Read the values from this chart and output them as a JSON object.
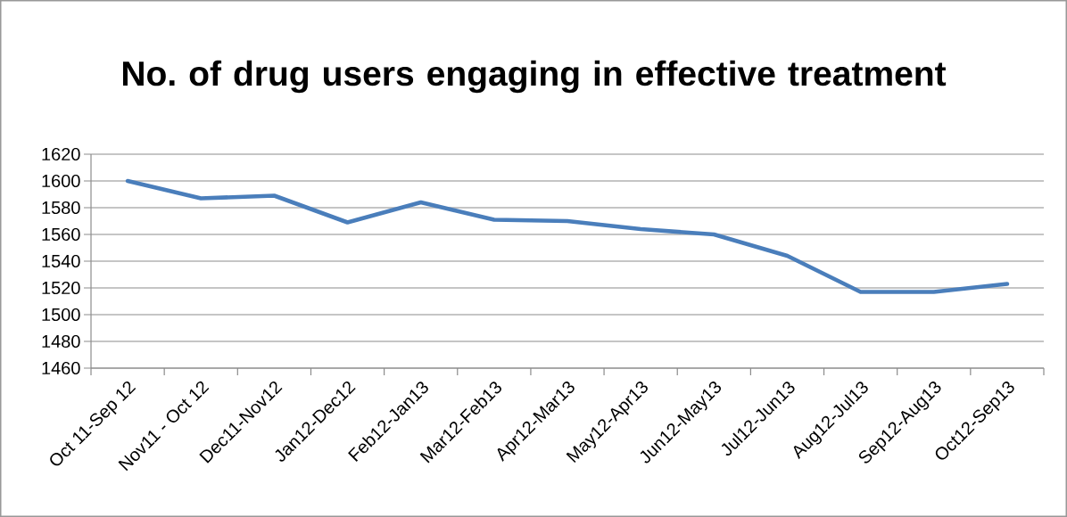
{
  "chart_data": {
    "type": "line",
    "title": "No. of drug users engaging in effective treatment",
    "categories": [
      "Oct 11-Sep 12",
      "Nov11 - Oct 12",
      "Dec11-Nov12",
      "Jan12-Dec12",
      "Feb12-Jan13",
      "Mar12-Feb13",
      "Apr12-Mar13",
      "May12-Apr13",
      "Jun12-May13",
      "Jul12-Jun13",
      "Aug12-Jul13",
      "Sep12-Aug13",
      "Oct12-Sep13"
    ],
    "series": [
      {
        "color": "#4a7ebb",
        "values": [
          1600,
          1587,
          1589,
          1569,
          1584,
          1571,
          1570,
          1564,
          1560,
          1544,
          1517,
          1517,
          1523
        ]
      }
    ],
    "ylim": [
      1460,
      1620
    ],
    "yticks": [
      1460,
      1480,
      1500,
      1520,
      1540,
      1560,
      1580,
      1600,
      1620
    ],
    "grid": "y",
    "marker": "none",
    "line_style": "solid"
  }
}
